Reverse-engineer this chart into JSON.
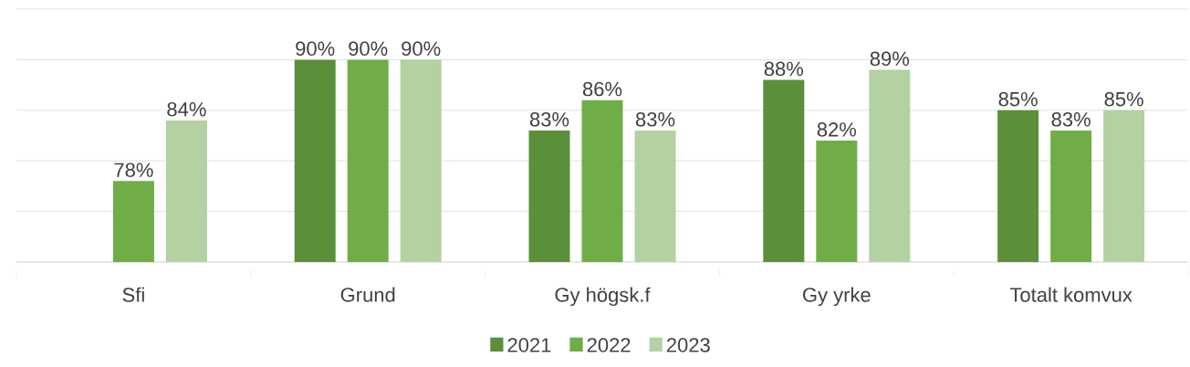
{
  "chart_data": {
    "type": "bar",
    "categories": [
      "Sfi",
      "Grund",
      "Gy  högsk.f",
      "Gy yrke",
      "Totalt komvux"
    ],
    "series": [
      {
        "name": "2021",
        "color": "#5b8f3a",
        "values": [
          null,
          90,
          83,
          88,
          85
        ],
        "value_labels": [
          null,
          "90%",
          "83%",
          "88%",
          "85%"
        ]
      },
      {
        "name": "2022",
        "color": "#70ad47",
        "values": [
          78,
          90,
          86,
          82,
          83
        ],
        "value_labels": [
          "78%",
          "90%",
          "86%",
          "82%",
          "83%"
        ]
      },
      {
        "name": "2023",
        "color": "#b3d1a1",
        "values": [
          84,
          90,
          83,
          89,
          85
        ],
        "value_labels": [
          "84%",
          "90%",
          "83%",
          "89%",
          "85%"
        ]
      }
    ],
    "ylim": [
      70,
      95
    ],
    "yticks": [
      {
        "value": 70,
        "label": null
      },
      {
        "value": 75,
        "label": null
      },
      {
        "value": 80,
        "label": null
      },
      {
        "value": 85,
        "label": null
      },
      {
        "value": 90,
        "label": null
      },
      {
        "value": 95,
        "label": null
      }
    ],
    "tick_labels": "x",
    "grid": "y",
    "legend": "bottom"
  }
}
